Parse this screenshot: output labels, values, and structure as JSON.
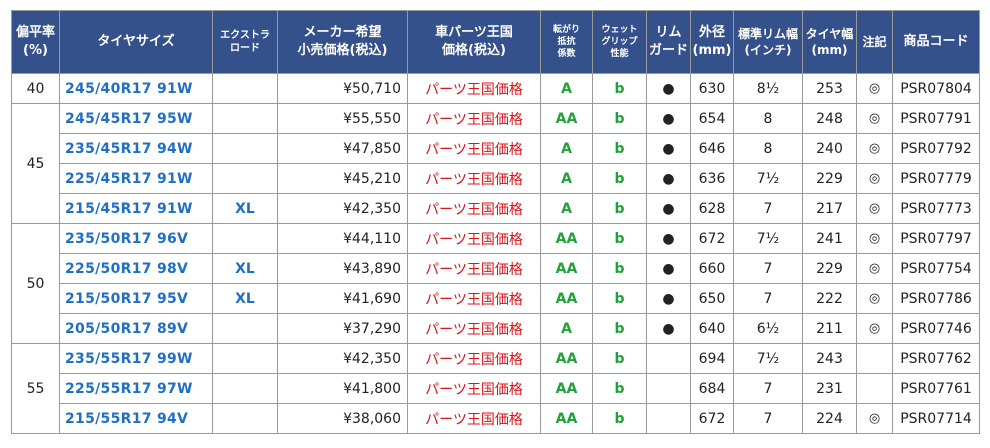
{
  "headers": {
    "aspect": [
      "偏平率",
      "(%)"
    ],
    "size": [
      "タイヤサイズ"
    ],
    "xl": [
      "エクストラ",
      "ロード"
    ],
    "maker_price": [
      "メーカー希望",
      "小売価格(税込)"
    ],
    "king_price": [
      "車パーツ王国",
      "価格(税込)"
    ],
    "rolling": [
      "転がり",
      "抵抗",
      "係数"
    ],
    "wet": [
      "ウェット",
      "グリップ",
      "性能"
    ],
    "rim_guard": [
      "リム",
      "ガード"
    ],
    "diameter": [
      "外径",
      "(mm)"
    ],
    "rim_width": [
      "標準リム幅",
      "(インチ)"
    ],
    "tire_width": [
      "タイヤ幅",
      "(mm)"
    ],
    "note": [
      "注記"
    ],
    "code": [
      "商品コード"
    ]
  },
  "groups": [
    {
      "aspect": "40",
      "rows": [
        {
          "size": "245/40R17 91W",
          "xl": "",
          "price": "¥50,710",
          "king": "パーツ王国価格",
          "rolling": "A",
          "wet": "b",
          "rim": "●",
          "diameter": "630",
          "rim_width": "8½",
          "tire_width": "253",
          "note": "◎",
          "code": "PSR07804"
        }
      ]
    },
    {
      "aspect": "45",
      "rows": [
        {
          "size": "245/45R17 95W",
          "xl": "",
          "price": "¥55,550",
          "king": "パーツ王国価格",
          "rolling": "AA",
          "wet": "b",
          "rim": "●",
          "diameter": "654",
          "rim_width": "8",
          "tire_width": "248",
          "note": "◎",
          "code": "PSR07791"
        },
        {
          "size": "235/45R17 94W",
          "xl": "",
          "price": "¥47,850",
          "king": "パーツ王国価格",
          "rolling": "A",
          "wet": "b",
          "rim": "●",
          "diameter": "646",
          "rim_width": "8",
          "tire_width": "240",
          "note": "◎",
          "code": "PSR07792"
        },
        {
          "size": "225/45R17 91W",
          "xl": "",
          "price": "¥45,210",
          "king": "パーツ王国価格",
          "rolling": "A",
          "wet": "b",
          "rim": "●",
          "diameter": "636",
          "rim_width": "7½",
          "tire_width": "229",
          "note": "◎",
          "code": "PSR07779"
        },
        {
          "size": "215/45R17 91W",
          "xl": "XL",
          "price": "¥42,350",
          "king": "パーツ王国価格",
          "rolling": "A",
          "wet": "b",
          "rim": "●",
          "diameter": "628",
          "rim_width": "7",
          "tire_width": "217",
          "note": "◎",
          "code": "PSR07773"
        }
      ]
    },
    {
      "aspect": "50",
      "rows": [
        {
          "size": "235/50R17 96V",
          "xl": "",
          "price": "¥44,110",
          "king": "パーツ王国価格",
          "rolling": "AA",
          "wet": "b",
          "rim": "●",
          "diameter": "672",
          "rim_width": "7½",
          "tire_width": "241",
          "note": "◎",
          "code": "PSR07797"
        },
        {
          "size": "225/50R17 98V",
          "xl": "XL",
          "price": "¥43,890",
          "king": "パーツ王国価格",
          "rolling": "AA",
          "wet": "b",
          "rim": "●",
          "diameter": "660",
          "rim_width": "7",
          "tire_width": "229",
          "note": "◎",
          "code": "PSR07754"
        },
        {
          "size": "215/50R17 95V",
          "xl": "XL",
          "price": "¥41,690",
          "king": "パーツ王国価格",
          "rolling": "AA",
          "wet": "b",
          "rim": "●",
          "diameter": "650",
          "rim_width": "7",
          "tire_width": "222",
          "note": "◎",
          "code": "PSR07786"
        },
        {
          "size": "205/50R17 89V",
          "xl": "",
          "price": "¥37,290",
          "king": "パーツ王国価格",
          "rolling": "A",
          "wet": "b",
          "rim": "●",
          "diameter": "640",
          "rim_width": "6½",
          "tire_width": "211",
          "note": "◎",
          "code": "PSR07746"
        }
      ]
    },
    {
      "aspect": "55",
      "rows": [
        {
          "size": "235/55R17 99W",
          "xl": "",
          "price": "¥42,350",
          "king": "パーツ王国価格",
          "rolling": "AA",
          "wet": "b",
          "rim": "",
          "diameter": "694",
          "rim_width": "7½",
          "tire_width": "243",
          "note": "",
          "code": "PSR07762"
        },
        {
          "size": "225/55R17 97W",
          "xl": "",
          "price": "¥41,800",
          "king": "パーツ王国価格",
          "rolling": "AA",
          "wet": "b",
          "rim": "",
          "diameter": "684",
          "rim_width": "7",
          "tire_width": "231",
          "note": "",
          "code": "PSR07761"
        },
        {
          "size": "215/55R17 94V",
          "xl": "",
          "price": "¥38,060",
          "king": "パーツ王国価格",
          "rolling": "AA",
          "wet": "b",
          "rim": "",
          "diameter": "672",
          "rim_width": "7",
          "tire_width": "224",
          "note": "◎",
          "code": "PSR07714"
        }
      ]
    }
  ],
  "colors": {
    "header_bg": "#35518b",
    "size_text": "#1f6fc4",
    "king_text": "#d8141b",
    "grade_text": "#20a23a"
  }
}
